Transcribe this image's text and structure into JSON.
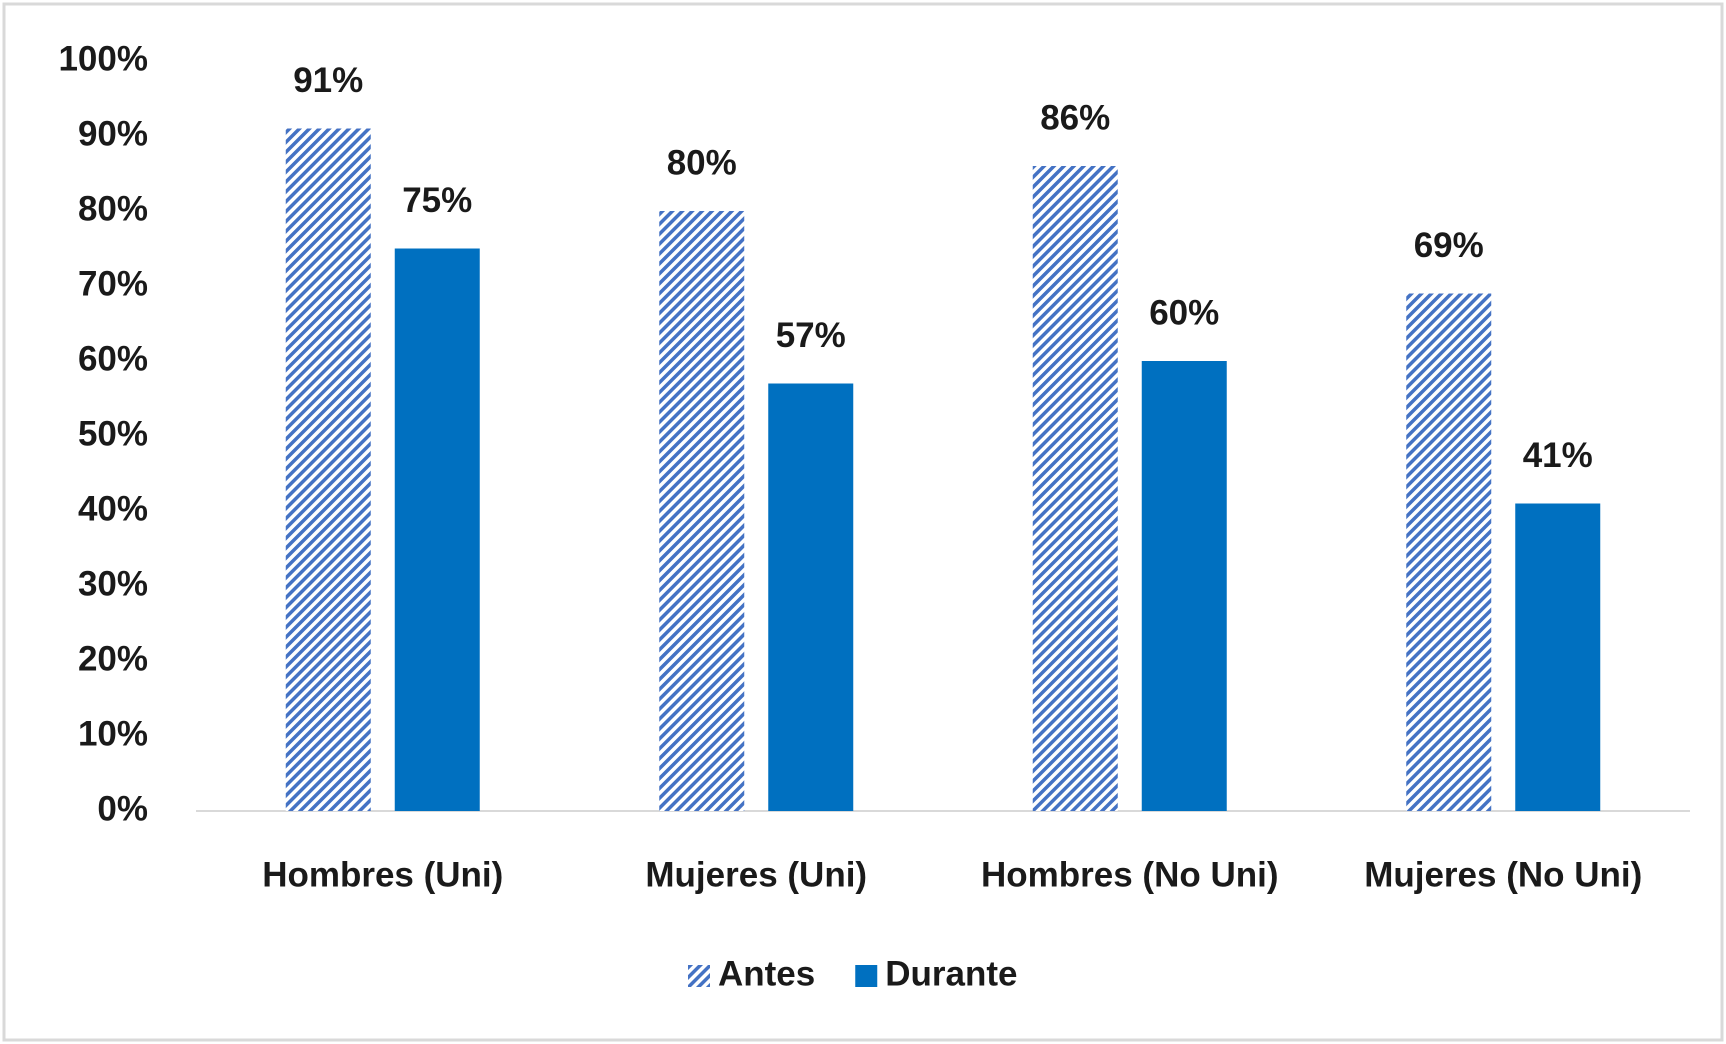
{
  "chart_data": {
    "type": "bar",
    "categories": [
      "Hombres (Uni)",
      "Mujeres (Uni)",
      "Hombres (No Uni)",
      "Mujeres (No Uni)"
    ],
    "series": [
      {
        "name": "Antes",
        "color": "#4472c4",
        "hatch": true,
        "values": [
          91,
          80,
          86,
          69
        ],
        "value_labels": [
          "91%",
          "80%",
          "86%",
          "69%"
        ]
      },
      {
        "name": "Durante",
        "color": "#0070c0",
        "hatch": false,
        "values": [
          75,
          57,
          60,
          41
        ],
        "value_labels": [
          "75%",
          "57%",
          "60%",
          "41%"
        ]
      }
    ],
    "ylim": [
      0,
      100
    ],
    "yticks": [
      {
        "value": 0,
        "label": "0%"
      },
      {
        "value": 10,
        "label": "10%"
      },
      {
        "value": 20,
        "label": "20%"
      },
      {
        "value": 30,
        "label": "30%"
      },
      {
        "value": 40,
        "label": "40%"
      },
      {
        "value": 50,
        "label": "50%"
      },
      {
        "value": 60,
        "label": "60%"
      },
      {
        "value": 70,
        "label": "70%"
      },
      {
        "value": 80,
        "label": "80%"
      },
      {
        "value": 90,
        "label": "90%"
      },
      {
        "value": 100,
        "label": "100%"
      }
    ],
    "grid": false,
    "legend": "bottom"
  }
}
